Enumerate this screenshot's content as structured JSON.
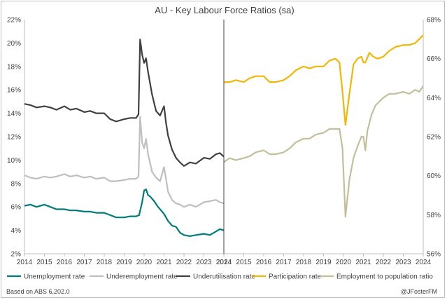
{
  "chart_data": {
    "type": "line",
    "title": "AU - Key Labour Force Ratios (sa)",
    "left_panel": {
      "x_ticks": [
        "2014",
        "2015",
        "2016",
        "2017",
        "2018",
        "2019",
        "2020",
        "2021",
        "2022",
        "2023",
        "2024"
      ],
      "y_axis": {
        "min": 2,
        "max": 22,
        "step": 2,
        "tick_labels": [
          "2%",
          "4%",
          "6%",
          "8%",
          "10%",
          "12%",
          "14%",
          "16%",
          "18%",
          "20%",
          "22%"
        ]
      },
      "series": [
        {
          "name": "Unemployment rate",
          "color": "#007b7b",
          "x": [
            2014.0,
            2014.3,
            2014.6,
            2015.0,
            2015.3,
            2015.6,
            2016.0,
            2016.3,
            2016.6,
            2017.0,
            2017.3,
            2017.6,
            2018.0,
            2018.3,
            2018.6,
            2019.0,
            2019.3,
            2019.6,
            2019.75,
            2019.9,
            2020.0,
            2020.1,
            2020.2,
            2020.3,
            2020.5,
            2020.7,
            2020.9,
            2021.0,
            2021.2,
            2021.4,
            2021.6,
            2021.8,
            2022.0,
            2022.3,
            2022.6,
            2023.0,
            2023.3,
            2023.6,
            2023.8,
            2024.0
          ],
          "y": [
            6.1,
            6.2,
            6.0,
            6.2,
            6.0,
            5.8,
            5.8,
            5.7,
            5.7,
            5.6,
            5.6,
            5.5,
            5.5,
            5.3,
            5.1,
            5.1,
            5.2,
            5.2,
            5.3,
            6.4,
            7.4,
            7.5,
            7.0,
            6.9,
            6.5,
            6.0,
            5.6,
            5.4,
            4.8,
            4.4,
            4.3,
            3.8,
            3.6,
            3.5,
            3.6,
            3.7,
            3.6,
            3.9,
            4.1,
            4.0
          ]
        },
        {
          "name": "Underemployment rate",
          "color": "#bfbfbf",
          "x": [
            2014.0,
            2014.3,
            2014.6,
            2015.0,
            2015.3,
            2015.6,
            2016.0,
            2016.3,
            2016.6,
            2017.0,
            2017.3,
            2017.6,
            2018.0,
            2018.3,
            2018.6,
            2019.0,
            2019.3,
            2019.6,
            2019.72,
            2019.8,
            2019.9,
            2020.0,
            2020.1,
            2020.2,
            2020.4,
            2020.6,
            2020.8,
            2021.0,
            2021.1,
            2021.2,
            2021.4,
            2021.6,
            2021.8,
            2022.0,
            2022.3,
            2022.6,
            2023.0,
            2023.3,
            2023.6,
            2023.8,
            2024.0
          ],
          "y": [
            8.7,
            8.5,
            8.4,
            8.6,
            8.5,
            8.6,
            8.8,
            8.6,
            8.7,
            8.5,
            8.6,
            8.4,
            8.5,
            8.2,
            8.2,
            8.3,
            8.4,
            8.4,
            8.6,
            13.7,
            11.5,
            11.0,
            11.8,
            10.5,
            9.0,
            8.5,
            8.2,
            9.4,
            8.4,
            7.3,
            6.6,
            6.3,
            6.2,
            6.0,
            6.2,
            6.0,
            6.4,
            6.5,
            6.6,
            6.4,
            6.3
          ]
        },
        {
          "name": "Underutilisation rate",
          "color": "#404040",
          "x": [
            2014.0,
            2014.3,
            2014.6,
            2015.0,
            2015.3,
            2015.6,
            2016.0,
            2016.3,
            2016.6,
            2017.0,
            2017.3,
            2017.6,
            2018.0,
            2018.3,
            2018.6,
            2019.0,
            2019.3,
            2019.6,
            2019.72,
            2019.8,
            2019.9,
            2020.0,
            2020.1,
            2020.2,
            2020.4,
            2020.6,
            2020.8,
            2021.0,
            2021.1,
            2021.2,
            2021.4,
            2021.6,
            2021.8,
            2022.0,
            2022.3,
            2022.6,
            2023.0,
            2023.3,
            2023.6,
            2023.8,
            2024.0
          ],
          "y": [
            14.8,
            14.7,
            14.5,
            14.6,
            14.5,
            14.3,
            14.6,
            14.3,
            14.4,
            14.1,
            14.2,
            14.0,
            14.0,
            13.5,
            13.3,
            13.5,
            13.6,
            13.6,
            13.9,
            20.3,
            19.0,
            18.3,
            18.7,
            17.5,
            15.6,
            14.2,
            13.8,
            14.6,
            13.2,
            12.1,
            10.9,
            10.2,
            9.8,
            9.5,
            9.8,
            9.7,
            10.2,
            10.1,
            10.5,
            10.6,
            10.3
          ]
        }
      ]
    },
    "right_panel": {
      "x_ticks": [
        "2014",
        "2015",
        "2016",
        "2017",
        "2018",
        "2019",
        "2020",
        "2021",
        "2022",
        "2023",
        "2024"
      ],
      "y_axis": {
        "min": 56,
        "max": 68,
        "step": 2,
        "tick_labels": [
          "56%",
          "58%",
          "60%",
          "62%",
          "64%",
          "66%",
          "68%"
        ]
      },
      "series": [
        {
          "name": "Participation rate",
          "color": "#f2b705",
          "x": [
            2014.0,
            2014.3,
            2014.6,
            2015.0,
            2015.3,
            2015.6,
            2016.0,
            2016.3,
            2016.6,
            2017.0,
            2017.3,
            2017.6,
            2018.0,
            2018.3,
            2018.6,
            2019.0,
            2019.3,
            2019.6,
            2019.8,
            2019.95,
            2020.1,
            2020.3,
            2020.5,
            2020.7,
            2020.9,
            2021.0,
            2021.1,
            2021.3,
            2021.5,
            2021.7,
            2022.0,
            2022.3,
            2022.6,
            2023.0,
            2023.3,
            2023.6,
            2023.8,
            2024.0
          ],
          "y": [
            64.8,
            64.8,
            64.9,
            64.8,
            65.0,
            65.1,
            65.1,
            64.8,
            64.8,
            64.9,
            65.1,
            65.4,
            65.6,
            65.5,
            65.6,
            65.6,
            65.9,
            66.0,
            65.8,
            64.3,
            62.6,
            64.2,
            65.7,
            66.0,
            66.1,
            65.8,
            65.8,
            66.3,
            66.1,
            66.0,
            66.1,
            66.4,
            66.6,
            66.7,
            66.7,
            66.8,
            67.0,
            67.2
          ]
        },
        {
          "name": "Employment to population ratio",
          "color": "#c4bf9a",
          "x": [
            2014.0,
            2014.3,
            2014.6,
            2015.0,
            2015.3,
            2015.6,
            2016.0,
            2016.3,
            2016.6,
            2017.0,
            2017.3,
            2017.6,
            2018.0,
            2018.3,
            2018.6,
            2019.0,
            2019.3,
            2019.6,
            2019.8,
            2019.95,
            2020.1,
            2020.3,
            2020.5,
            2020.7,
            2020.9,
            2021.0,
            2021.1,
            2021.2,
            2021.4,
            2021.6,
            2021.8,
            2022.0,
            2022.3,
            2022.6,
            2023.0,
            2023.3,
            2023.6,
            2023.8,
            2024.0
          ],
          "y": [
            60.7,
            60.9,
            60.8,
            60.9,
            61.0,
            61.2,
            61.3,
            61.1,
            61.1,
            61.2,
            61.4,
            61.7,
            61.9,
            61.9,
            62.1,
            62.2,
            62.4,
            62.4,
            62.4,
            61.4,
            57.9,
            59.8,
            60.9,
            61.5,
            62.0,
            62.0,
            61.3,
            62.3,
            63.1,
            63.6,
            63.8,
            64.0,
            64.2,
            64.2,
            64.3,
            64.2,
            64.4,
            64.3,
            64.6
          ]
        }
      ]
    },
    "legend": [
      "Unemployment rate",
      "Underemployment rate",
      "Underutilisation rate",
      "Participation rate",
      "Employment to population ratio"
    ],
    "legend_placement": "bottom",
    "grid": false
  },
  "footer": {
    "source": "Based on ABS 6,202.0",
    "credit": "@JFosterFM"
  }
}
